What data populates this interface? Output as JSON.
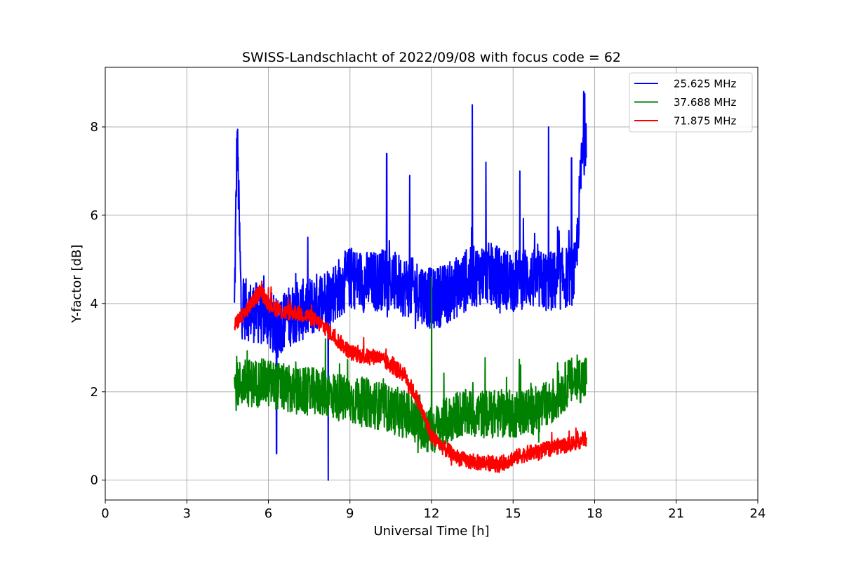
{
  "chart_data": {
    "type": "line",
    "title": "SWISS-Landschlacht of 2022/09/08 with focus code = 62",
    "xlabel": "Universal Time [h]",
    "ylabel": "Y-factor [dB]",
    "xlim": [
      0,
      24
    ],
    "ylim": [
      -0.45,
      9.35
    ],
    "xticks": [
      0,
      3,
      6,
      9,
      12,
      15,
      18,
      21,
      24
    ],
    "yticks": [
      0,
      2,
      4,
      6,
      8
    ],
    "grid": true,
    "legend_position": "top-right",
    "series": [
      {
        "name": "25.625 MHz",
        "color": "#0000ff",
        "x": [
          4.75,
          4.85,
          5.0,
          5.5,
          6.0,
          6.3,
          6.5,
          7.0,
          7.5,
          8.0,
          8.5,
          9.0,
          9.5,
          10.0,
          10.3,
          10.5,
          11.0,
          11.5,
          12.0,
          12.5,
          13.0,
          13.5,
          14.0,
          14.5,
          15.0,
          15.5,
          16.0,
          16.5,
          17.0,
          17.3,
          17.5,
          17.7
        ],
        "y": [
          3.8,
          7.9,
          3.9,
          3.8,
          3.7,
          3.4,
          3.6,
          3.8,
          3.9,
          4.1,
          4.3,
          4.6,
          4.5,
          4.5,
          4.6,
          4.5,
          4.4,
          4.3,
          4.1,
          4.2,
          4.4,
          4.6,
          4.7,
          4.6,
          4.5,
          4.6,
          4.5,
          4.5,
          4.6,
          4.7,
          7.0,
          8.0
        ],
        "noise": 0.7,
        "spikes": [
          [
            4.85,
            7.9
          ],
          [
            6.3,
            0.6
          ],
          [
            8.2,
            0.0
          ],
          [
            10.35,
            7.4
          ],
          [
            11.2,
            6.9
          ],
          [
            13.5,
            8.5
          ],
          [
            14.0,
            7.2
          ],
          [
            15.25,
            7.0
          ],
          [
            16.3,
            8.0
          ],
          [
            17.15,
            7.3
          ],
          [
            17.6,
            8.8
          ]
        ]
      },
      {
        "name": "37.688 MHz",
        "color": "#008000",
        "x": [
          4.75,
          5.0,
          6.0,
          7.0,
          8.0,
          9.0,
          10.0,
          11.0,
          11.5,
          12.0,
          12.5,
          13.0,
          14.0,
          15.0,
          16.0,
          16.5,
          17.0,
          17.5,
          17.7
        ],
        "y": [
          2.1,
          2.2,
          2.2,
          2.0,
          2.0,
          1.8,
          1.7,
          1.5,
          1.3,
          1.1,
          1.3,
          1.5,
          1.5,
          1.5,
          1.6,
          1.8,
          2.2,
          2.3,
          2.3
        ],
        "noise": 0.55,
        "spikes": [
          [
            12.0,
            4.6
          ],
          [
            8.1,
            3.2
          ]
        ]
      },
      {
        "name": "71.875 MHz",
        "color": "#ff0000",
        "x": [
          4.75,
          5.0,
          5.5,
          5.7,
          6.0,
          6.5,
          7.0,
          7.5,
          8.0,
          8.5,
          9.0,
          9.5,
          10.0,
          10.5,
          11.0,
          11.5,
          12.0,
          12.5,
          13.0,
          13.5,
          14.0,
          14.5,
          15.0,
          15.5,
          16.0,
          16.5,
          17.0,
          17.5,
          17.7
        ],
        "y": [
          3.5,
          3.7,
          4.1,
          4.3,
          4.0,
          3.8,
          3.8,
          3.7,
          3.5,
          3.2,
          2.9,
          2.8,
          2.8,
          2.6,
          2.4,
          1.8,
          1.0,
          0.7,
          0.5,
          0.4,
          0.4,
          0.35,
          0.5,
          0.6,
          0.65,
          0.75,
          0.8,
          0.9,
          0.95
        ],
        "noise": 0.18,
        "spikes": []
      }
    ]
  }
}
